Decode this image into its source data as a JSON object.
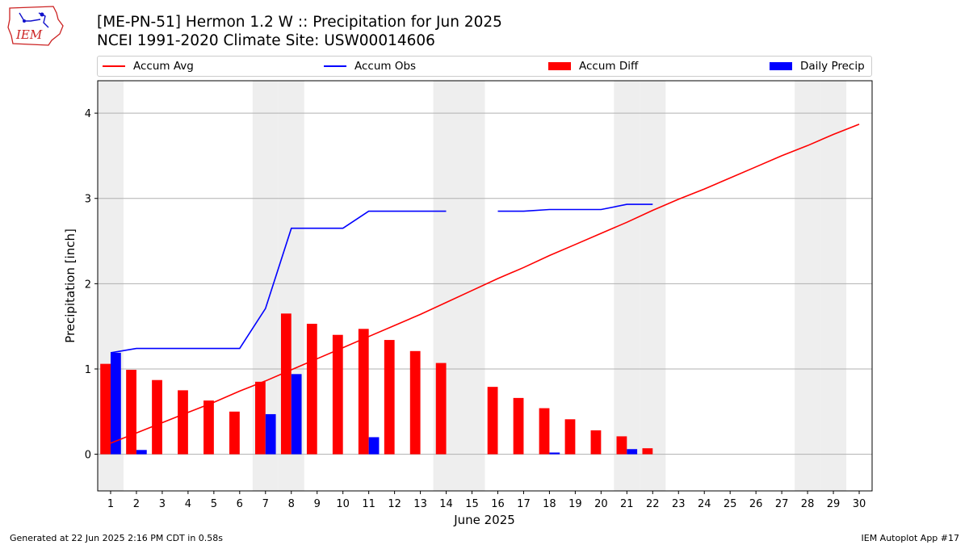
{
  "header": {
    "title_line1": "[ME-PN-51] Hermon 1.2 W :: Precipitation for Jun 2025",
    "title_line2": "NCEI 1991-2020 Climate Site: USW00014606",
    "logo_text": "IEM"
  },
  "legend": {
    "items": [
      {
        "label": "Accum Avg",
        "color": "#ff0000",
        "kind": "line"
      },
      {
        "label": "Accum Obs",
        "color": "#0000ff",
        "kind": "line"
      },
      {
        "label": "Accum Diff",
        "color": "#ff0000",
        "kind": "bar"
      },
      {
        "label": "Daily Precip",
        "color": "#0000ff",
        "kind": "bar"
      }
    ]
  },
  "chart_data": {
    "type": "bar",
    "xlabel": "June 2025",
    "ylabel": "Precipitation [inch]",
    "xlim": [
      0.5,
      30.5
    ],
    "ylim": [
      -0.43,
      4.38
    ],
    "yticks": [
      0,
      1,
      2,
      3,
      4
    ],
    "grid": "y",
    "legend_position": "top",
    "weekend_days": [
      1,
      7,
      8,
      14,
      15,
      21,
      22,
      28,
      29
    ],
    "days": [
      1,
      2,
      3,
      4,
      5,
      6,
      7,
      8,
      9,
      10,
      11,
      12,
      13,
      14,
      15,
      16,
      17,
      18,
      19,
      20,
      21,
      22,
      23,
      24,
      25,
      26,
      27,
      28,
      29,
      30
    ],
    "series": [
      {
        "name": "Accum Avg",
        "kind": "line",
        "color": "#ff0000",
        "values": [
          0.13,
          0.25,
          0.37,
          0.49,
          0.61,
          0.74,
          0.86,
          0.99,
          1.12,
          1.25,
          1.38,
          1.51,
          1.64,
          1.78,
          1.92,
          2.06,
          2.19,
          2.33,
          2.46,
          2.59,
          2.72,
          2.86,
          2.99,
          3.11,
          3.24,
          3.37,
          3.5,
          3.62,
          3.75,
          3.87
        ]
      },
      {
        "name": "Accum Obs",
        "kind": "line",
        "color": "#0000ff",
        "values": [
          1.19,
          1.24,
          1.24,
          1.24,
          1.24,
          1.24,
          1.71,
          2.65,
          2.65,
          2.65,
          2.85,
          2.85,
          2.85,
          2.85,
          null,
          2.85,
          2.85,
          2.87,
          2.87,
          2.87,
          2.93,
          2.93,
          null,
          null,
          null,
          null,
          null,
          null,
          null,
          null
        ]
      },
      {
        "name": "Accum Diff",
        "kind": "bar",
        "color": "#ff0000",
        "values": [
          1.06,
          0.99,
          0.87,
          0.75,
          0.63,
          0.5,
          0.85,
          1.65,
          1.53,
          1.4,
          1.47,
          1.34,
          1.21,
          1.07,
          null,
          0.79,
          0.66,
          0.54,
          0.41,
          0.28,
          0.21,
          0.07,
          null,
          null,
          null,
          null,
          null,
          null,
          null,
          null
        ]
      },
      {
        "name": "Daily Precip",
        "kind": "bar",
        "color": "#0000ff",
        "values": [
          1.19,
          0.05,
          0,
          0,
          0,
          0,
          0.47,
          0.94,
          0,
          0,
          0.2,
          0,
          0,
          0,
          null,
          0,
          0,
          0.02,
          0,
          0,
          0.06,
          0,
          null,
          null,
          null,
          null,
          null,
          null,
          null,
          null
        ]
      }
    ]
  },
  "footer": {
    "left": "Generated at 22 Jun 2025 2:16 PM CDT in 0.58s",
    "right": "IEM Autoplot App #17"
  }
}
